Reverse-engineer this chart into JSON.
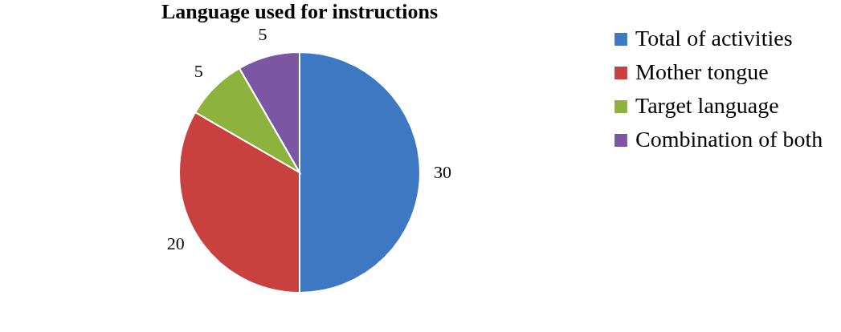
{
  "chart_data": {
    "type": "pie",
    "title": "Language used for instructions",
    "categories": [
      "Total of activities",
      "Mother tongue",
      "Target language",
      "Combination of both"
    ],
    "values": [
      30,
      20,
      5,
      5
    ],
    "colors": [
      "#3f78c2",
      "#c9413e",
      "#8db33e",
      "#7a56a3"
    ],
    "data_labels": true,
    "legend": "right"
  }
}
